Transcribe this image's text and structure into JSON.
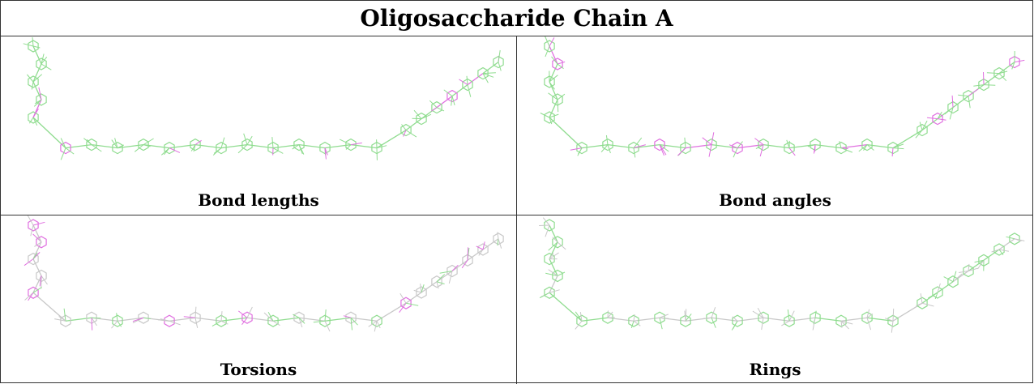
{
  "title": "Oligosaccharide Chain A",
  "panels": [
    {
      "label": "Bond lengths",
      "mode": "lengths"
    },
    {
      "label": "Bond angles",
      "mode": "angles"
    },
    {
      "label": "Torsions",
      "mode": "torsions"
    },
    {
      "label": "Rings",
      "mode": "rings"
    }
  ],
  "colors": {
    "good": "#8fdc8f",
    "outlier": "#e070e0",
    "neutral": "#c8c8c8",
    "border": "#333333"
  }
}
